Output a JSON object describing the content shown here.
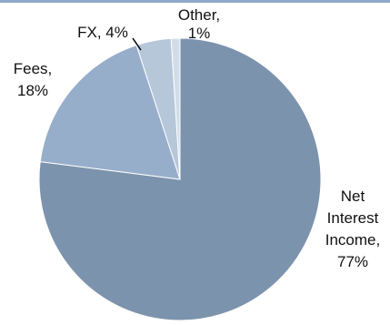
{
  "chart_data": {
    "type": "pie",
    "title": "",
    "series": [
      {
        "categories": [
          "Net Interest Income",
          "Fees",
          "FX",
          "Other"
        ],
        "values": [
          77,
          18,
          4,
          1
        ],
        "unit": "%"
      }
    ],
    "labels": [
      [
        "Net",
        "Interest",
        "Income,",
        "77%"
      ],
      [
        "Fees,",
        "18%"
      ],
      [
        "FX, 4%"
      ],
      [
        "Other,",
        "1%"
      ]
    ],
    "colors": {
      "slices": [
        "#7C93AD",
        "#97AECA",
        "#B6C7DA",
        "#D2DCE8"
      ],
      "top_border": "#8FAAC8",
      "slice_edge": "#ffffff",
      "leader_line": "#000000"
    },
    "legend": "none",
    "grid": false
  }
}
